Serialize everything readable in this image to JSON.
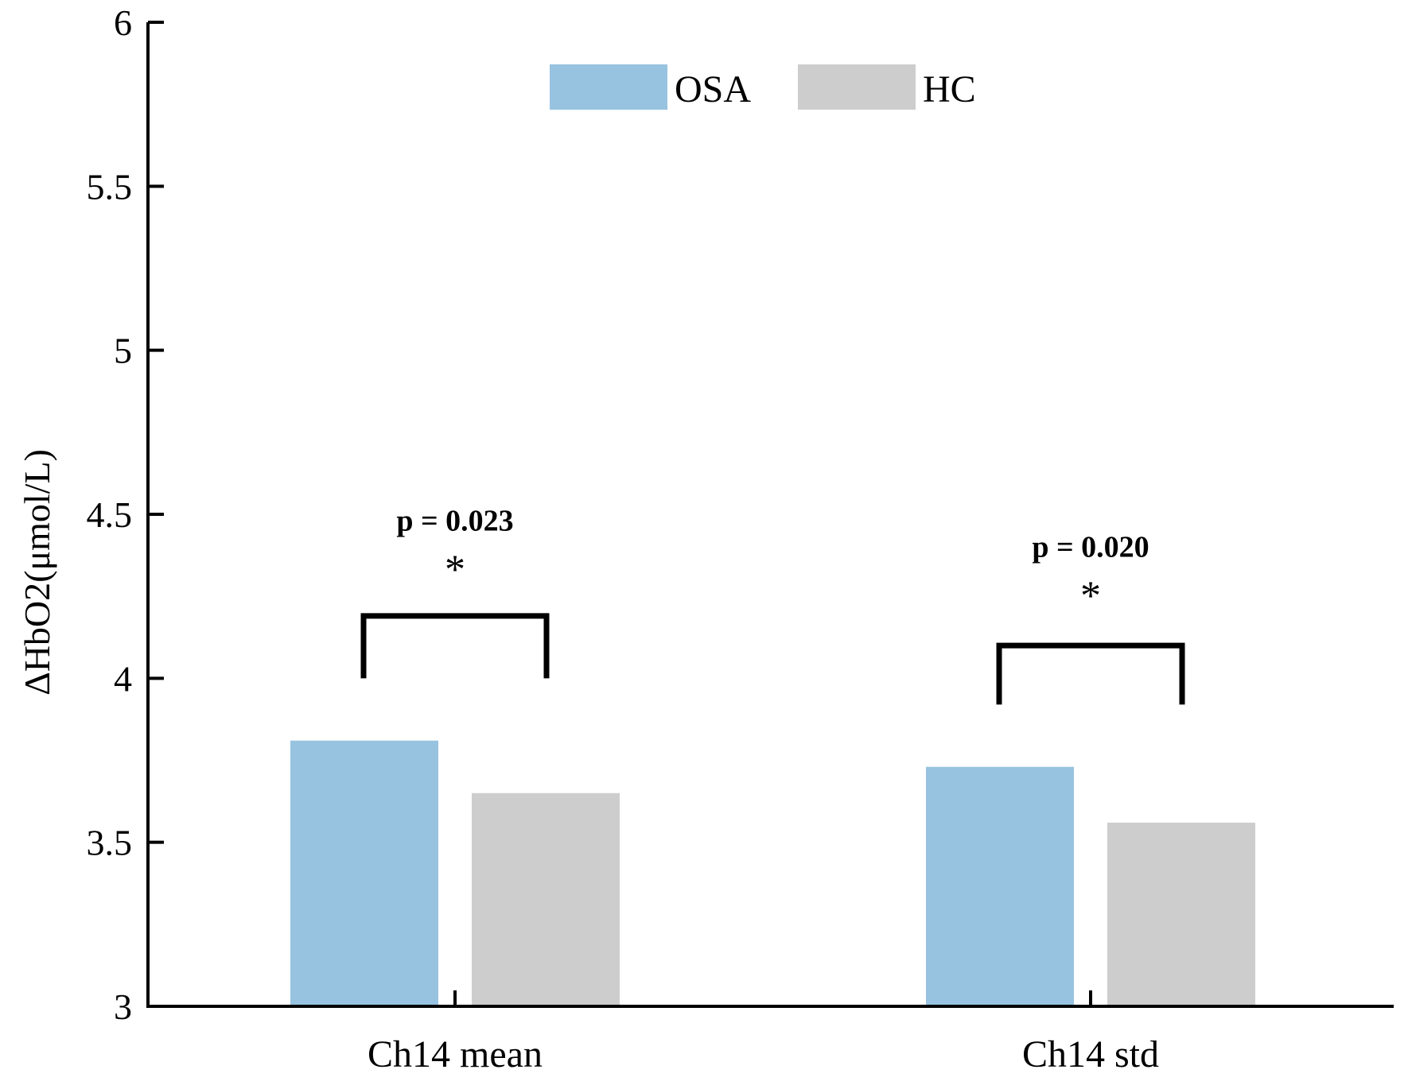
{
  "chart_data": {
    "type": "bar",
    "title": "",
    "xlabel": "",
    "ylabel": "ΔHbO2(μmol/L)",
    "ylim": [
      3,
      6
    ],
    "yticks": [
      "3",
      "3.5",
      "4",
      "4.5",
      "5",
      "5.5",
      "6"
    ],
    "grid": false,
    "legend_position": "top-center",
    "categories": [
      "Ch14 mean",
      "Ch14 std"
    ],
    "series": [
      {
        "name": "OSA",
        "color": "#97c3e0",
        "values": [
          3.81,
          3.73
        ]
      },
      {
        "name": "HC",
        "color": "#cdcdcd",
        "values": [
          3.65,
          3.56
        ]
      }
    ],
    "annotations": [
      {
        "category": "Ch14 mean",
        "p_text": "p = 0.023",
        "star": "*",
        "bracket_top": 4.19,
        "bracket_bottom": 4.0,
        "text_level": 4.45
      },
      {
        "category": "Ch14 std",
        "p_text": "p = 0.020",
        "star": "*",
        "bracket_top": 4.1,
        "bracket_bottom": 3.92,
        "text_level": 4.37
      }
    ]
  }
}
